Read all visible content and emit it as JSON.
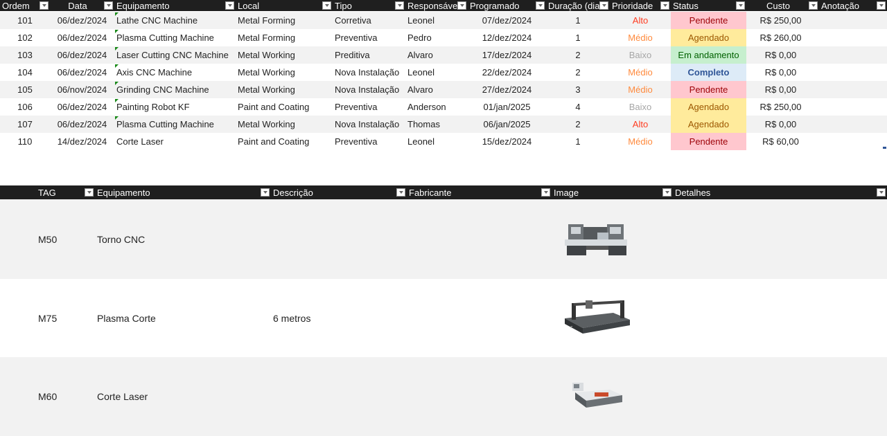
{
  "orders": {
    "headers": [
      "Ordem",
      "Data",
      "Equipamento",
      "Local",
      "Tipo",
      "Responsável",
      "Programado",
      "Duração (dias",
      "Prioridade",
      "Status",
      "Custo",
      "Anotação"
    ],
    "rows": [
      [
        "101",
        "06/dez/2024",
        "Lathe CNC Machine",
        "Metal Forming",
        "Corretiva",
        "Leonel",
        "07/dez/2024",
        "1",
        "Alto",
        "Pendente",
        "R$ 250,00",
        ""
      ],
      [
        "102",
        "06/dez/2024",
        "Plasma Cutting Machine",
        "Metal Forming",
        "Preventiva",
        "Pedro",
        "12/dez/2024",
        "1",
        "Médio",
        "Agendado",
        "R$ 260,00",
        ""
      ],
      [
        "103",
        "06/dez/2024",
        "Laser Cutting CNC Machine",
        "Metal Working",
        "Preditiva",
        "Alvaro",
        "17/dez/2024",
        "2",
        "Baixo",
        "Em andamento",
        "R$ 0,00",
        ""
      ],
      [
        "104",
        "06/dez/2024",
        "Axis CNC Machine",
        "Metal Working",
        "Nova Instalação",
        "Leonel",
        "22/dez/2024",
        "2",
        "Médio",
        "Completo",
        "R$ 0,00",
        ""
      ],
      [
        "105",
        "06/nov/2024",
        "Grinding CNC Machine",
        "Metal Working",
        "Nova Instalação",
        "Alvaro",
        "27/dez/2024",
        "3",
        "Médio",
        "Pendente",
        "R$ 0,00",
        ""
      ],
      [
        "106",
        "06/dez/2024",
        "Painting Robot KF",
        "Paint and Coating",
        "Preventiva",
        "Anderson",
        "01/jan/2025",
        "4",
        "Baixo",
        "Agendado",
        "R$ 250,00",
        ""
      ],
      [
        "107",
        "06/dez/2024",
        "Plasma Cutting Machine",
        "Metal Working",
        "Nova Instalação",
        "Thomas",
        "06/jan/2025",
        "2",
        "Alto",
        "Agendado",
        "R$ 0,00",
        ""
      ],
      [
        "110",
        "14/dez/2024",
        "Corte Laser",
        "Paint and Coating",
        "Preventiva",
        "Leonel",
        "15/dez/2024",
        "1",
        "Médio",
        "Pendente",
        "R$ 60,00",
        ""
      ]
    ]
  },
  "status_colors": {
    "Pendente": [
      "#ffc7ce",
      "#9c0006"
    ],
    "Agendado": [
      "#ffeb9c",
      "#9c5700"
    ],
    "Em andamento": [
      "#c6efce",
      "#006100"
    ],
    "Completo": [
      "#ddebf7",
      "#2f5597"
    ]
  },
  "priority_colors": {
    "Alto": "#ff3b1f",
    "Médio": "#ff8a3d",
    "Baixo": "#a6a6a6"
  },
  "equipment": {
    "headers": [
      "TAG",
      "Equipamento",
      "Descrição",
      "Fabricante",
      "Image",
      "Detalhes"
    ],
    "rows": [
      {
        "tag": "M50",
        "name": "Torno CNC",
        "desc": "",
        "fab": "",
        "image": "lathe-machine-image",
        "det": ""
      },
      {
        "tag": "M75",
        "name": "Plasma Corte",
        "desc": "6 metros",
        "fab": "",
        "image": "plasma-cutter-image",
        "det": ""
      },
      {
        "tag": "M60",
        "name": "Corte Laser",
        "desc": "",
        "fab": "",
        "image": "laser-cutter-image",
        "det": ""
      }
    ]
  }
}
